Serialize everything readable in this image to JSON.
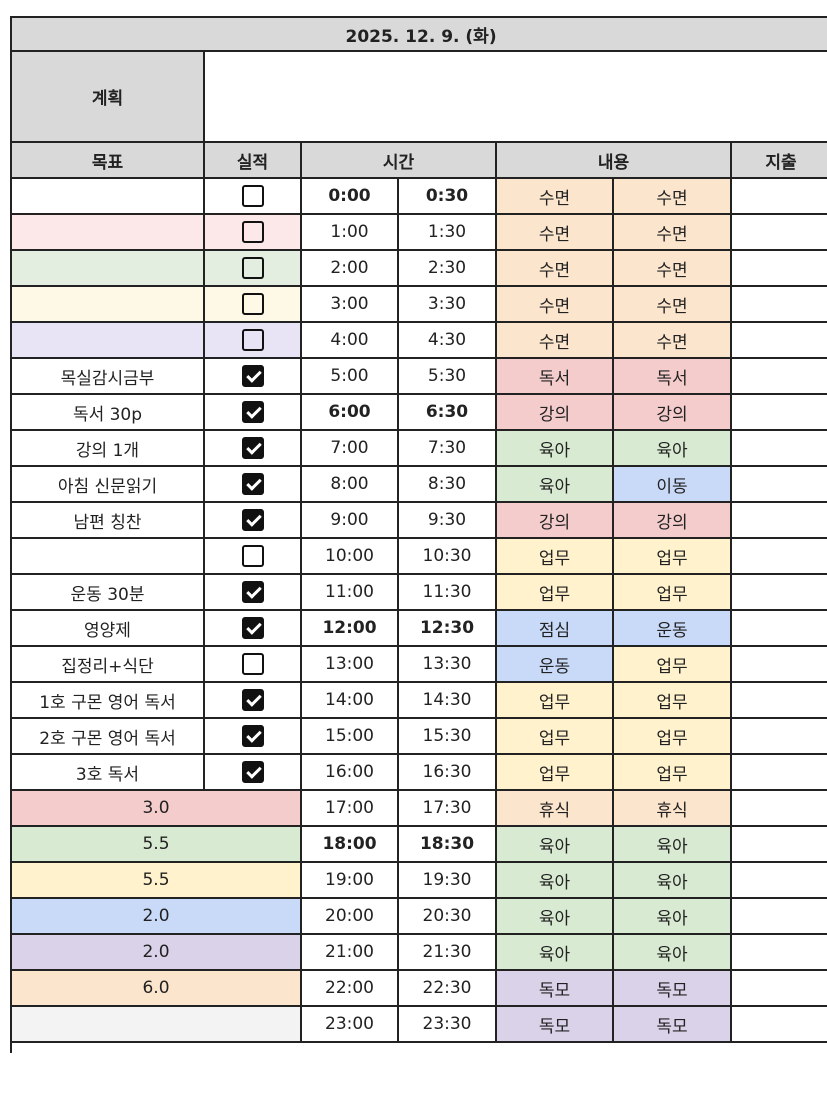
{
  "title": "2025. 12. 9. (화)",
  "plan_label": "계획",
  "plan_value": "",
  "headers": {
    "goal": "목표",
    "result": "실적",
    "time": "시간",
    "content": "내용",
    "expense": "지출"
  },
  "content_colors": {
    "수면": "#fce5cd",
    "독서": "#f4cccc",
    "강의": "#f4cccc",
    "육아": "#d9ead3",
    "이동": "#c9daf8",
    "업무": "#fff2cc",
    "점심": "#c9daf8",
    "운동": "#c9daf8",
    "휴식": "#fce5cd",
    "독모": "#d9d2e9"
  },
  "rows": [
    {
      "goal": "",
      "goal_color": "#ffffff",
      "checked": false,
      "start": "0:00",
      "end": "0:30",
      "bold": true,
      "c1": "수면",
      "c2": "수면"
    },
    {
      "goal": "",
      "goal_color": "#fce8e8",
      "checked": false,
      "start": "1:00",
      "end": "1:30",
      "bold": false,
      "c1": "수면",
      "c2": "수면"
    },
    {
      "goal": "",
      "goal_color": "#e3eee0",
      "checked": false,
      "start": "2:00",
      "end": "2:30",
      "bold": false,
      "c1": "수면",
      "c2": "수면"
    },
    {
      "goal": "",
      "goal_color": "#fef8e6",
      "checked": false,
      "start": "3:00",
      "end": "3:30",
      "bold": false,
      "c1": "수면",
      "c2": "수면"
    },
    {
      "goal": "",
      "goal_color": "#e8e4f6",
      "checked": false,
      "start": "4:00",
      "end": "4:30",
      "bold": false,
      "c1": "수면",
      "c2": "수면"
    },
    {
      "goal": "목실감시금부",
      "goal_color": "#ffffff",
      "checked": true,
      "start": "5:00",
      "end": "5:30",
      "bold": false,
      "c1": "독서",
      "c2": "독서"
    },
    {
      "goal": "독서 30p",
      "goal_color": "#ffffff",
      "checked": true,
      "start": "6:00",
      "end": "6:30",
      "bold": true,
      "c1": "강의",
      "c2": "강의"
    },
    {
      "goal": "강의 1개",
      "goal_color": "#ffffff",
      "checked": true,
      "start": "7:00",
      "end": "7:30",
      "bold": false,
      "c1": "육아",
      "c2": "육아"
    },
    {
      "goal": "아침 신문읽기",
      "goal_color": "#ffffff",
      "checked": true,
      "start": "8:00",
      "end": "8:30",
      "bold": false,
      "c1": "육아",
      "c2": "이동"
    },
    {
      "goal": "남편 칭찬",
      "goal_color": "#ffffff",
      "checked": true,
      "start": "9:00",
      "end": "9:30",
      "bold": false,
      "c1": "강의",
      "c2": "강의"
    },
    {
      "goal": "",
      "goal_color": "#ffffff",
      "checked": false,
      "start": "10:00",
      "end": "10:30",
      "bold": false,
      "c1": "업무",
      "c2": "업무"
    },
    {
      "goal": "운동 30분",
      "goal_color": "#ffffff",
      "checked": true,
      "start": "11:00",
      "end": "11:30",
      "bold": false,
      "c1": "업무",
      "c2": "업무"
    },
    {
      "goal": "영양제",
      "goal_color": "#ffffff",
      "checked": true,
      "start": "12:00",
      "end": "12:30",
      "bold": true,
      "c1": "점심",
      "c2": "운동"
    },
    {
      "goal": "집정리+식단",
      "goal_color": "#ffffff",
      "checked": false,
      "start": "13:00",
      "end": "13:30",
      "bold": false,
      "c1": "운동",
      "c2": "업무"
    },
    {
      "goal": "1호 구몬 영어 독서",
      "goal_color": "#ffffff",
      "checked": true,
      "start": "14:00",
      "end": "14:30",
      "bold": false,
      "c1": "업무",
      "c2": "업무"
    },
    {
      "goal": "2호 구몬 영어 독서",
      "goal_color": "#ffffff",
      "checked": true,
      "start": "15:00",
      "end": "15:30",
      "bold": false,
      "c1": "업무",
      "c2": "업무"
    },
    {
      "goal": "3호 독서",
      "goal_color": "#ffffff",
      "checked": true,
      "start": "16:00",
      "end": "16:30",
      "bold": false,
      "c1": "업무",
      "c2": "업무"
    },
    {
      "summary": "3.0",
      "goal_color": "#f4cccc",
      "start": "17:00",
      "end": "17:30",
      "bold": false,
      "c1": "휴식",
      "c2": "휴식"
    },
    {
      "summary": "5.5",
      "goal_color": "#d9ead3",
      "start": "18:00",
      "end": "18:30",
      "bold": true,
      "c1": "육아",
      "c2": "육아"
    },
    {
      "summary": "5.5",
      "goal_color": "#fff2cc",
      "start": "19:00",
      "end": "19:30",
      "bold": false,
      "c1": "육아",
      "c2": "육아"
    },
    {
      "summary": "2.0",
      "goal_color": "#c9daf8",
      "start": "20:00",
      "end": "20:30",
      "bold": false,
      "c1": "육아",
      "c2": "육아"
    },
    {
      "summary": "2.0",
      "goal_color": "#d9d2e9",
      "start": "21:00",
      "end": "21:30",
      "bold": false,
      "c1": "육아",
      "c2": "육아"
    },
    {
      "summary": "6.0",
      "goal_color": "#fce5cd",
      "start": "22:00",
      "end": "22:30",
      "bold": false,
      "c1": "독모",
      "c2": "독모"
    },
    {
      "summary": "",
      "goal_color": "#f3f3f3",
      "start": "23:00",
      "end": "23:30",
      "bold": false,
      "c1": "독모",
      "c2": "독모"
    }
  ]
}
